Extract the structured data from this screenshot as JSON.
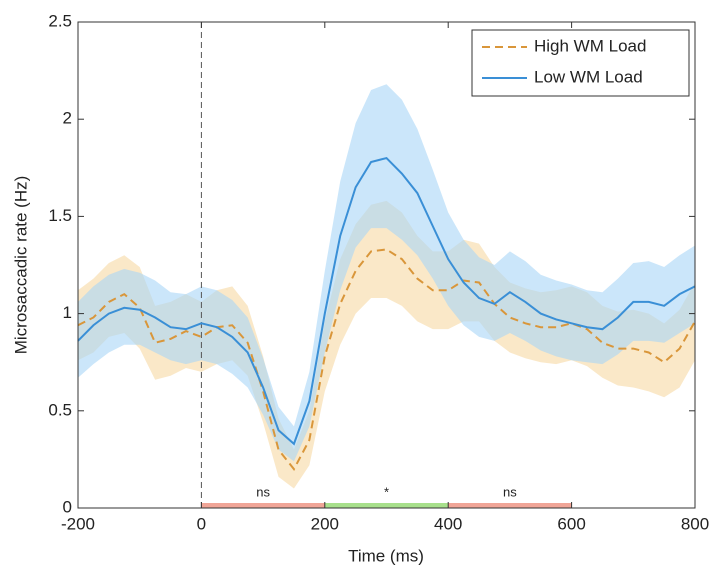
{
  "chart_data": {
    "type": "line",
    "ylabel": "Microsaccadic rate (Hz)",
    "xlabel": "Time (ms)",
    "x": [
      -200,
      -175,
      -150,
      -125,
      -100,
      -75,
      -50,
      -25,
      0,
      25,
      50,
      75,
      100,
      125,
      150,
      175,
      200,
      225,
      250,
      275,
      300,
      325,
      350,
      375,
      400,
      425,
      450,
      475,
      500,
      525,
      550,
      575,
      600,
      625,
      650,
      675,
      700,
      725,
      750,
      775,
      800
    ],
    "series": [
      {
        "name": "High WM Load",
        "color": "#d9963a",
        "band_color": "#f7d9a3",
        "dashed": true,
        "values": [
          0.94,
          0.98,
          1.06,
          1.1,
          1.03,
          0.85,
          0.87,
          0.91,
          0.88,
          0.93,
          0.94,
          0.85,
          0.6,
          0.3,
          0.2,
          0.35,
          0.78,
          1.05,
          1.22,
          1.32,
          1.33,
          1.28,
          1.18,
          1.12,
          1.12,
          1.17,
          1.16,
          1.05,
          0.98,
          0.95,
          0.93,
          0.93,
          0.95,
          0.92,
          0.85,
          0.82,
          0.82,
          0.8,
          0.75,
          0.82,
          0.96
        ],
        "lower": [
          0.76,
          0.8,
          0.88,
          0.9,
          0.82,
          0.66,
          0.68,
          0.72,
          0.7,
          0.74,
          0.76,
          0.68,
          0.44,
          0.16,
          0.1,
          0.22,
          0.6,
          0.84,
          1.0,
          1.08,
          1.08,
          1.04,
          0.96,
          0.92,
          0.92,
          0.96,
          0.96,
          0.86,
          0.8,
          0.77,
          0.75,
          0.74,
          0.76,
          0.73,
          0.67,
          0.63,
          0.62,
          0.6,
          0.57,
          0.62,
          0.76
        ],
        "upper": [
          1.12,
          1.18,
          1.26,
          1.3,
          1.24,
          1.04,
          1.06,
          1.1,
          1.06,
          1.12,
          1.14,
          1.04,
          0.78,
          0.46,
          0.3,
          0.5,
          0.96,
          1.28,
          1.46,
          1.56,
          1.58,
          1.52,
          1.4,
          1.32,
          1.32,
          1.38,
          1.36,
          1.24,
          1.16,
          1.13,
          1.11,
          1.12,
          1.14,
          1.11,
          1.04,
          1.01,
          1.02,
          1.0,
          0.95,
          1.02,
          1.16
        ]
      },
      {
        "name": "Low WM Load",
        "color": "#3a8fd6",
        "band_color": "#a9d6f7",
        "dashed": false,
        "values": [
          0.86,
          0.94,
          1.0,
          1.03,
          1.02,
          0.98,
          0.93,
          0.92,
          0.95,
          0.93,
          0.88,
          0.8,
          0.62,
          0.4,
          0.33,
          0.55,
          1.0,
          1.4,
          1.65,
          1.78,
          1.8,
          1.72,
          1.62,
          1.45,
          1.28,
          1.16,
          1.08,
          1.05,
          1.11,
          1.06,
          1.0,
          0.97,
          0.95,
          0.93,
          0.92,
          0.98,
          1.06,
          1.06,
          1.04,
          1.1,
          1.14
        ],
        "lower": [
          0.67,
          0.74,
          0.8,
          0.84,
          0.84,
          0.8,
          0.76,
          0.74,
          0.76,
          0.74,
          0.69,
          0.62,
          0.48,
          0.3,
          0.24,
          0.42,
          0.8,
          1.12,
          1.34,
          1.44,
          1.44,
          1.38,
          1.3,
          1.18,
          1.04,
          0.94,
          0.88,
          0.86,
          0.9,
          0.86,
          0.81,
          0.78,
          0.76,
          0.75,
          0.74,
          0.79,
          0.86,
          0.86,
          0.85,
          0.9,
          0.95
        ],
        "upper": [
          1.06,
          1.14,
          1.2,
          1.23,
          1.21,
          1.17,
          1.11,
          1.1,
          1.14,
          1.12,
          1.07,
          0.98,
          0.77,
          0.52,
          0.42,
          0.7,
          1.22,
          1.68,
          1.98,
          2.15,
          2.18,
          2.1,
          1.95,
          1.74,
          1.52,
          1.38,
          1.29,
          1.25,
          1.32,
          1.27,
          1.2,
          1.17,
          1.15,
          1.12,
          1.11,
          1.18,
          1.26,
          1.27,
          1.24,
          1.3,
          1.35
        ]
      }
    ],
    "vline": 0,
    "segments": [
      {
        "start": 0,
        "end": 200,
        "label": "ns",
        "color": "#f0a597"
      },
      {
        "start": 200,
        "end": 400,
        "label": "*",
        "color": "#a8e08c"
      },
      {
        "start": 400,
        "end": 600,
        "label": "ns",
        "color": "#f0a597"
      }
    ],
    "xlim": [
      -200,
      800
    ],
    "xticks": [
      -200,
      0,
      200,
      400,
      600,
      800
    ],
    "ylim": [
      0,
      2.5
    ],
    "yticks": [
      0,
      0.5,
      1,
      1.5,
      2,
      2.5
    ],
    "legend": "top-right"
  }
}
